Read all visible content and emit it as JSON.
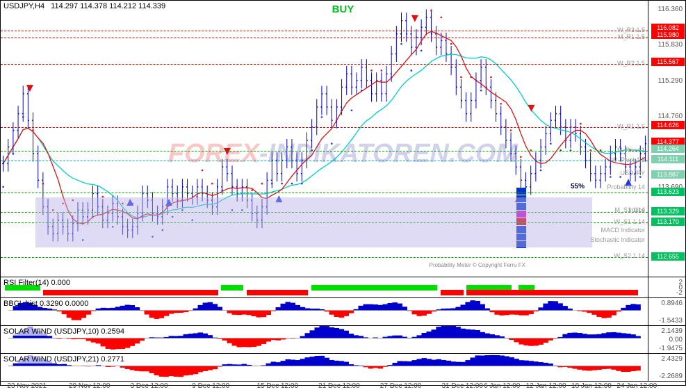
{
  "header": {
    "symbol": "USDJPY,H4",
    "ohlc": "114.297 114.378 114.212 114.339",
    "signal_text": "BUY",
    "signal_color": "#00c020"
  },
  "main": {
    "ylim": [
      112.35,
      116.5
    ],
    "yticks": [
      116.36,
      115.83,
      115.29,
      114.76,
      113.69
    ],
    "price_tags": [
      {
        "v": 116.082,
        "bg": "#ff0000"
      },
      {
        "v": 115.98,
        "bg": "#ff0000"
      },
      {
        "v": 115.567,
        "bg": "#ff0000"
      },
      {
        "v": 114.626,
        "bg": "#ff0000"
      },
      {
        "v": 114.377,
        "bg": "#ff0000"
      },
      {
        "v": 114.264,
        "bg": "#7fd0b0"
      },
      {
        "v": 114.111,
        "bg": "#7fd0b0"
      },
      {
        "v": 113.887,
        "bg": "#7fd0b0"
      },
      {
        "v": 113.623,
        "bg": "#00c060"
      },
      {
        "v": 113.329,
        "bg": "#00c060"
      },
      {
        "v": 113.17,
        "bg": "#00c060"
      },
      {
        "v": 112.655,
        "bg": "#00c060"
      }
    ],
    "pivot_labels": [
      {
        "text": "W_R3 1.5",
        "v": 116.05
      },
      {
        "text": "M_R1 1.5",
        "v": 115.95
      },
      {
        "text": "W_R2 1.5",
        "v": 115.55
      },
      {
        "text": "W_R1 1.5",
        "v": 114.6
      },
      {
        "text": "M_Pivot 1",
        "v": 114.25
      },
      {
        "text": "W_Pivot 1.5",
        "v": 114.1
      },
      {
        "text": "USDJPY",
        "v": 113.9
      },
      {
        "text": "Probability 14",
        "v": 113.7
      },
      {
        "text": "Indice",
        "v": 113.35
      },
      {
        "text": "W_S1 1.14",
        "v": 113.17
      },
      {
        "text": "W_S2 1.14",
        "v": 112.66
      }
    ],
    "info_labels": [
      {
        "text": "M_S1 1.14",
        "v": 113.35
      },
      {
        "text": "MACD Indicator",
        "v": 113.05
      },
      {
        "text": "Stochastic Indicator",
        "v": 112.9
      }
    ],
    "prob_value": "55%",
    "prob_pos_v": 113.72,
    "hlines": [
      {
        "v": 116.05,
        "color": "#cc0000",
        "dash": "4,2"
      },
      {
        "v": 115.95,
        "color": "#cc0000",
        "dash": "4,2"
      },
      {
        "v": 115.55,
        "color": "#cc0000",
        "dash": "4,2"
      },
      {
        "v": 114.6,
        "color": "#cc0000",
        "dash": "4,2"
      },
      {
        "v": 114.25,
        "color": "#00aa00",
        "dash": "2,2"
      },
      {
        "v": 114.1,
        "color": "#00aaaa",
        "dash": "2,2"
      },
      {
        "v": 113.62,
        "color": "#00aa00",
        "dash": "2,2"
      },
      {
        "v": 113.33,
        "color": "#00aa00",
        "dash": "2,2"
      },
      {
        "v": 113.17,
        "color": "#00aa00",
        "dash": "2,2"
      },
      {
        "v": 112.65,
        "color": "#00aa00",
        "dash": "2,2"
      }
    ],
    "candles": {
      "color": "#0000cc",
      "count": 260,
      "path_close": [
        114.05,
        114.3,
        114.55,
        114.8,
        115.1,
        114.7,
        114.2,
        113.8,
        113.4,
        113.1,
        113.0,
        113.2,
        113.1,
        113.0,
        113.15,
        113.35,
        113.25,
        113.35,
        113.6,
        113.4,
        113.2,
        113.3,
        113.45,
        113.25,
        113.1,
        113.05,
        113.1,
        113.3,
        113.6,
        113.5,
        113.3,
        113.25,
        113.4,
        113.7,
        113.6,
        113.5,
        113.7,
        113.6,
        113.55,
        113.7,
        113.6,
        113.5,
        113.4,
        113.7,
        114.0,
        113.9,
        113.7,
        113.6,
        113.7,
        113.5,
        113.3,
        113.2,
        113.4,
        113.8,
        114.1,
        113.9,
        114.1,
        114.3,
        114.1,
        113.9,
        114.1,
        114.4,
        114.6,
        114.9,
        115.1,
        114.9,
        114.7,
        114.9,
        115.2,
        115.4,
        115.2,
        115.3,
        115.5,
        115.3,
        115.1,
        115.3,
        115.1,
        115.4,
        115.7,
        116.0,
        116.2,
        116.0,
        115.8,
        115.95,
        116.1,
        116.25,
        116.0,
        115.8,
        115.9,
        115.7,
        115.5,
        115.2,
        115.0,
        114.8,
        115.0,
        115.3,
        115.5,
        115.2,
        115.0,
        114.8,
        114.6,
        114.4,
        114.2,
        114.0,
        113.8,
        113.7,
        113.9,
        114.1,
        114.3,
        114.5,
        114.7,
        114.8,
        114.6,
        114.4,
        114.6,
        114.5,
        114.3,
        114.1,
        113.9,
        113.8,
        113.9,
        114.0,
        114.2,
        114.3,
        114.2,
        114.0,
        113.9,
        114.0,
        114.2,
        114.35
      ]
    },
    "ma_red": {
      "color": "#dd1111"
    },
    "ma_cyan": {
      "color": "#00cccc"
    },
    "dots_red": {
      "color": "#dd1111"
    },
    "dots_blue": {
      "color": "#2233dd"
    },
    "arrows": [
      {
        "x": 0.045,
        "v": 115.15,
        "dir": "down",
        "color": "#dd1111"
      },
      {
        "x": 0.2,
        "v": 113.5,
        "dir": "up",
        "color": "#2233dd"
      },
      {
        "x": 0.26,
        "v": 113.5,
        "dir": "up",
        "color": "#2233dd"
      },
      {
        "x": 0.35,
        "v": 114.2,
        "dir": "down",
        "color": "#dd1111"
      },
      {
        "x": 0.43,
        "v": 113.55,
        "dir": "up",
        "color": "#2233dd"
      },
      {
        "x": 0.64,
        "v": 116.2,
        "dir": "down",
        "color": "#dd1111"
      },
      {
        "x": 0.8,
        "v": 113.55,
        "dir": "up",
        "color": "#2233dd"
      },
      {
        "x": 0.82,
        "v": 114.85,
        "dir": "down",
        "color": "#dd1111"
      },
      {
        "x": 0.97,
        "v": 113.8,
        "dir": "up",
        "color": "#2233dd"
      }
    ],
    "stack_blocks": {
      "x": 0.795,
      "v_top": 113.7,
      "colors": [
        "#0033cc",
        "#0033cc",
        "#0033cc",
        "#cc00cc",
        "#cc0000",
        "#0033cc",
        "#0033cc",
        "#0033cc"
      ]
    },
    "purple_box": {
      "top_v": 113.55,
      "bot_v": 112.8,
      "color": "#b8b0e8"
    },
    "copyright": "Probability Meter © Copyright Ferru FX"
  },
  "rsi": {
    "title": "RSI Filter(14)  0.000",
    "yticks": [
      "2",
      "0",
      "-2"
    ],
    "bars": [
      {
        "x": 0.006,
        "w": 0.055,
        "row": "top",
        "color": "#00dd00"
      },
      {
        "x": 0.066,
        "w": 0.27,
        "row": "bot",
        "color": "#ff0000"
      },
      {
        "x": 0.34,
        "w": 0.035,
        "row": "top",
        "color": "#00dd00"
      },
      {
        "x": 0.38,
        "w": 0.095,
        "row": "bot",
        "color": "#ff0000"
      },
      {
        "x": 0.48,
        "w": 0.195,
        "row": "top",
        "color": "#00dd00"
      },
      {
        "x": 0.68,
        "w": 0.035,
        "row": "bot",
        "color": "#ff0000"
      },
      {
        "x": 0.72,
        "w": 0.07,
        "row": "top",
        "color": "#00dd00"
      },
      {
        "x": 0.8,
        "w": 0.025,
        "row": "top",
        "color": "#00dd00"
      },
      {
        "x": 0.72,
        "w": 0.265,
        "row": "bot",
        "color": "#ff0000"
      }
    ]
  },
  "bbci": {
    "title": "BBCI_hist 0.3290 0.0000",
    "yticks": [
      "0.8946",
      "",
      "-1.5433"
    ]
  },
  "sw1": {
    "title": "SOLAR WIND (USDJPY,10) 0.2594",
    "yticks": [
      "2.1439",
      "0.00",
      "-1.9475"
    ]
  },
  "sw2": {
    "title": "SOLAR WIND (USDJPY,21) 0.2771",
    "yticks": [
      "2.4329",
      "",
      "-2.2689"
    ]
  },
  "xaxis": {
    "labels": [
      {
        "x": 0.01,
        "t": "23 Nov 2021"
      },
      {
        "x": 0.105,
        "t": "29 Nov 12:00"
      },
      {
        "x": 0.2,
        "t": "3 Dec 12:00"
      },
      {
        "x": 0.295,
        "t": "9 Dec 12:00"
      },
      {
        "x": 0.395,
        "t": "15 Dec 12:00"
      },
      {
        "x": 0.49,
        "t": "21 Dec 12:00"
      },
      {
        "x": 0.585,
        "t": "27 Dec 12:00"
      },
      {
        "x": 0.68,
        "t": "31 Dec 12:00"
      },
      {
        "x": 0.745,
        "t": "6 Jan 12:00"
      },
      {
        "x": 0.81,
        "t": "12 Jan 12:00"
      },
      {
        "x": 0.88,
        "t": "18 Jan 12:00"
      },
      {
        "x": 0.95,
        "t": "24 Jan 12:00"
      }
    ]
  },
  "osc_colors": {
    "pos": "#0000cc",
    "neg": "#ff0000",
    "pos2": "#1a1a80"
  }
}
